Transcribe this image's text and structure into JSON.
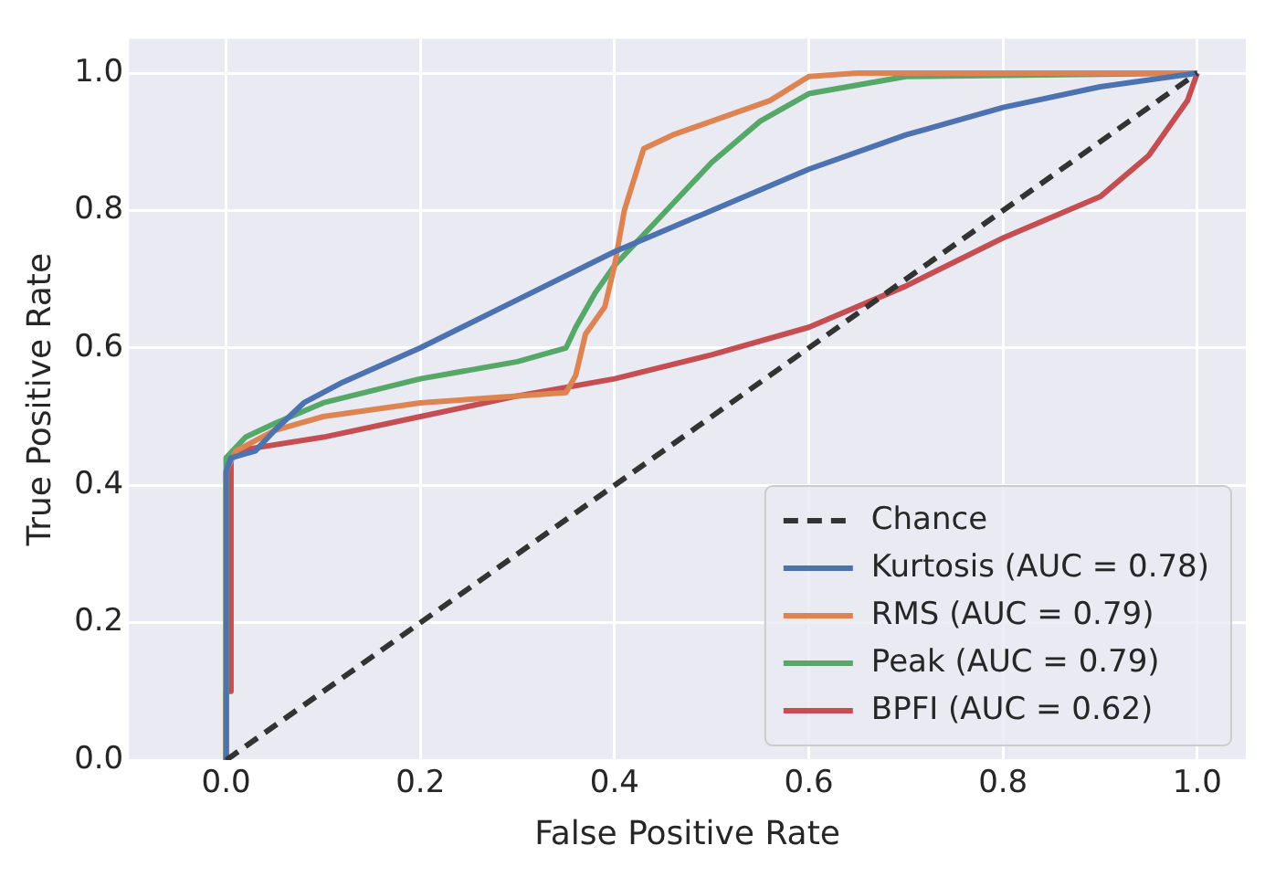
{
  "chart_data": {
    "type": "line",
    "xlabel": "False Positive Rate",
    "ylabel": "True Positive Rate",
    "xlim": [
      -0.1,
      1.05
    ],
    "ylim": [
      0,
      1.05
    ],
    "xticks": [
      {
        "value": 0,
        "label": "0.0"
      },
      {
        "value": 0.2,
        "label": "0.2"
      },
      {
        "value": 0.4,
        "label": "0.4"
      },
      {
        "value": 0.6,
        "label": "0.6"
      },
      {
        "value": 0.8,
        "label": "0.8"
      },
      {
        "value": 1,
        "label": "1.0"
      }
    ],
    "yticks": [
      {
        "value": 0,
        "label": "0.0"
      },
      {
        "value": 0.2,
        "label": "0.2"
      },
      {
        "value": 0.4,
        "label": "0.4"
      },
      {
        "value": 0.6,
        "label": "0.6"
      },
      {
        "value": 0.8,
        "label": "0.8"
      },
      {
        "value": 1,
        "label": "1.0"
      }
    ],
    "grid": true,
    "legend": "bottom right",
    "marker": "none",
    "series": [
      {
        "name": "Chance",
        "color": "#333333",
        "line_style": "dashed",
        "x": [
          0,
          1
        ],
        "values": [
          0,
          1
        ]
      },
      {
        "name": "Kurtosis (AUC = 0.78)",
        "color": "#4c72b0",
        "line_style": "solid",
        "x": [
          0,
          0,
          0.005,
          0.03,
          0.05,
          0.08,
          0.12,
          0.2,
          0.3,
          0.4,
          0.5,
          0.6,
          0.7,
          0.8,
          0.9,
          1
        ],
        "values": [
          0,
          0.42,
          0.44,
          0.45,
          0.48,
          0.52,
          0.55,
          0.6,
          0.67,
          0.74,
          0.8,
          0.86,
          0.91,
          0.95,
          0.98,
          1
        ]
      },
      {
        "name": "RMS (AUC = 0.79)",
        "color": "#dd8452",
        "line_style": "solid",
        "x": [
          0,
          0,
          0.01,
          0.05,
          0.1,
          0.2,
          0.3,
          0.35,
          0.36,
          0.37,
          0.39,
          0.4,
          0.41,
          0.43,
          0.46,
          0.52,
          0.56,
          0.6,
          0.65,
          1
        ],
        "values": [
          0,
          0.42,
          0.45,
          0.48,
          0.5,
          0.52,
          0.53,
          0.535,
          0.56,
          0.62,
          0.66,
          0.72,
          0.8,
          0.89,
          0.91,
          0.94,
          0.96,
          0.995,
          1,
          1
        ]
      },
      {
        "name": "Peak (AUC = 0.79)",
        "color": "#55a868",
        "line_style": "solid",
        "x": [
          0,
          0,
          0.02,
          0.05,
          0.1,
          0.2,
          0.3,
          0.35,
          0.36,
          0.38,
          0.4,
          0.44,
          0.5,
          0.55,
          0.6,
          0.7,
          1
        ],
        "values": [
          0,
          0.44,
          0.47,
          0.49,
          0.52,
          0.555,
          0.58,
          0.6,
          0.63,
          0.68,
          0.72,
          0.78,
          0.87,
          0.93,
          0.97,
          0.995,
          1
        ]
      },
      {
        "name": "BPFI (AUC = 0.62)",
        "color": "#c44e52",
        "line_style": "solid",
        "x": [
          0,
          0,
          0.005,
          0.005,
          0.01,
          0.1,
          0.2,
          0.3,
          0.4,
          0.5,
          0.6,
          0.7,
          0.8,
          0.9,
          0.95,
          0.99,
          1
        ],
        "values": [
          0,
          0.1,
          0.1,
          0.44,
          0.45,
          0.47,
          0.5,
          0.53,
          0.555,
          0.59,
          0.63,
          0.69,
          0.76,
          0.82,
          0.88,
          0.96,
          1
        ]
      }
    ]
  }
}
